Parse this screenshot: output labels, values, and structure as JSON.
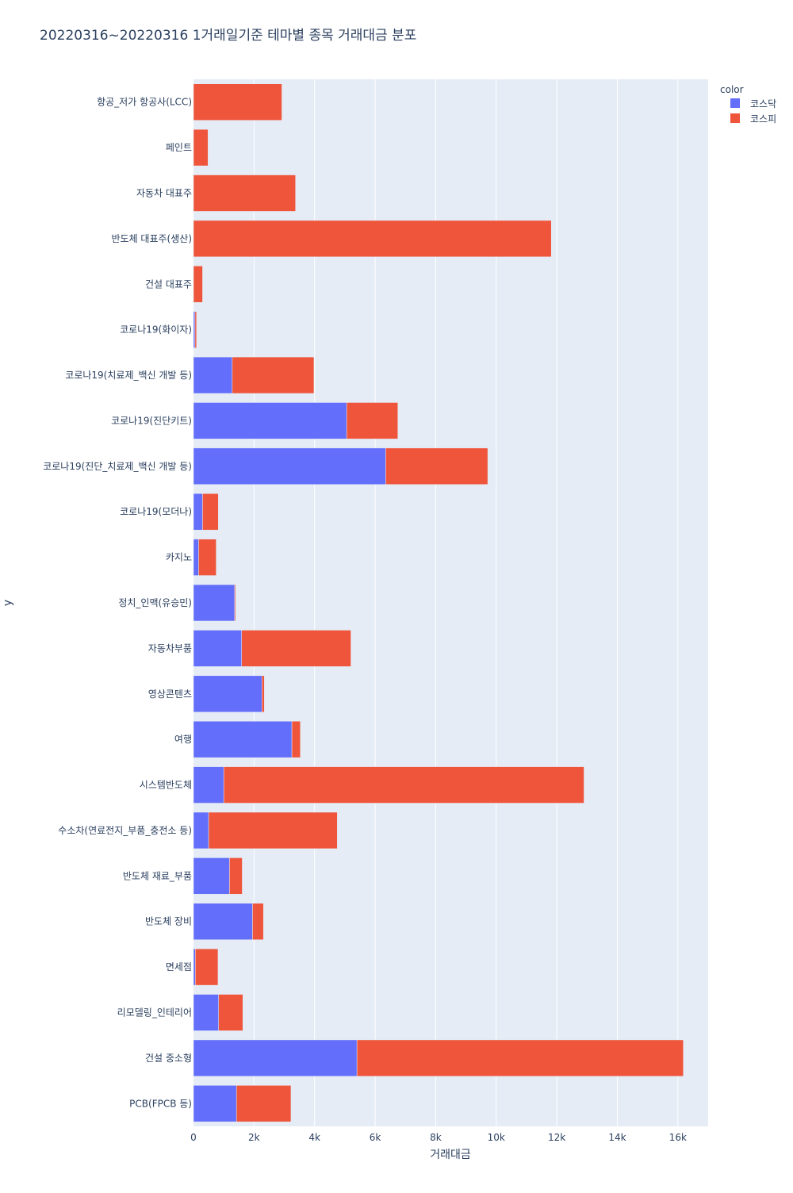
{
  "chart_data": {
    "type": "bar",
    "orientation": "horizontal",
    "barmode": "stack",
    "title": "20220316~20220316 1거래일기준 테마별 종목 거래대금 분포",
    "xlabel": "거래대금",
    "ylabel": "y",
    "xlim": [
      0,
      17000
    ],
    "xticks": [
      0,
      2000,
      4000,
      6000,
      8000,
      10000,
      12000,
      14000,
      16000
    ],
    "xtick_labels": [
      "0",
      "2k",
      "4k",
      "6k",
      "8k",
      "10k",
      "12k",
      "14k",
      "16k"
    ],
    "grid": true,
    "legend_title": "color",
    "legend_position": "top-right",
    "categories": [
      "항공_저가 항공사(LCC)",
      "페인트",
      "자동차 대표주",
      "반도체 대표주(생산)",
      "건설 대표주",
      "코로나19(화이자)",
      "코로나19(치료제_백신 개발 등)",
      "코로나19(진단키트)",
      "코로나19(진단_치료제_백신 개발 등)",
      "코로나19(모더나)",
      "카지노",
      "정치_인맥(유승민)",
      "자동차부품",
      "영상콘텐츠",
      "여행",
      "시스템반도체",
      "수소차(연료전지_부품_충전소 등)",
      "반도체 재료_부품",
      "반도체 장비",
      "면세점",
      "리모델링_인테리어",
      "건설 중소형",
      "PCB(FPCB 등)"
    ],
    "series": [
      {
        "name": "코스닥",
        "color": "#636efa",
        "values": [
          0,
          0,
          0,
          0,
          0,
          50,
          1280,
          5060,
          6350,
          300,
          170,
          1360,
          1590,
          2260,
          3250,
          1000,
          500,
          1190,
          1950,
          60,
          830,
          5400,
          1420
        ]
      },
      {
        "name": "코스피",
        "color": "#ef553b",
        "values": [
          2920,
          480,
          3370,
          11820,
          300,
          50,
          2700,
          1690,
          3370,
          520,
          580,
          30,
          3610,
          80,
          280,
          11900,
          4250,
          420,
          360,
          750,
          800,
          10780,
          1800
        ]
      }
    ]
  }
}
